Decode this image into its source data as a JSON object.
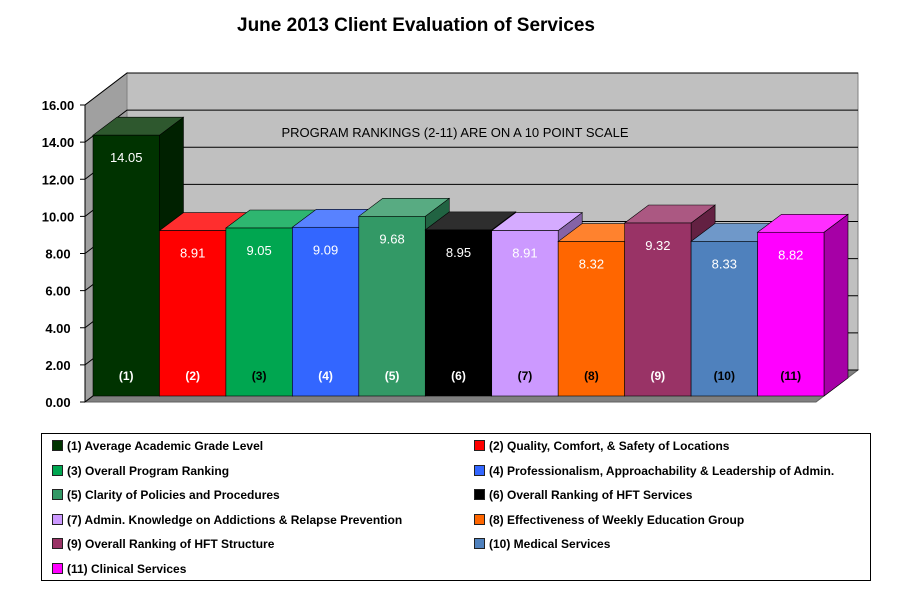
{
  "chart_data": {
    "type": "bar",
    "title": "June 2013 Client Evaluation of Services",
    "annotation": "PROGRAM RANKINGS (2-11) ARE ON A 10 POINT SCALE",
    "ylim": [
      0,
      16
    ],
    "yticks": [
      "0.00",
      "2.00",
      "4.00",
      "6.00",
      "8.00",
      "10.00",
      "12.00",
      "14.00",
      "16.00"
    ],
    "categories": [
      "(1)",
      "(2)",
      "(3)",
      "(4)",
      "(5)",
      "(6)",
      "(7)",
      "(8)",
      "(9)",
      "(10)",
      "(11)"
    ],
    "values": [
      14.05,
      8.91,
      9.05,
      9.09,
      9.68,
      8.95,
      8.91,
      8.32,
      9.32,
      8.33,
      8.82
    ],
    "value_labels": [
      "14.05",
      "8.91",
      "9.05",
      "9.09",
      "9.68",
      "8.95",
      "8.91",
      "8.32",
      "9.32",
      "8.33",
      "8.82"
    ],
    "colors": [
      "#003300",
      "#FF0000",
      "#00A650",
      "#3366FF",
      "#339966",
      "#000000",
      "#CC99FF",
      "#FF6600",
      "#993366",
      "#4F81BD",
      "#FF00FF"
    ],
    "series_names": [
      "(1) Average Academic Grade Level",
      "(2) Quality, Comfort, & Safety of Locations",
      "(3) Overall Program Ranking",
      "(4) Professionalism, Approachability  & Leadership of Admin.",
      "(5) Clarity of Policies and Procedures",
      "(6) Overall Ranking of HFT Services",
      "(7) Admin. Knowledge on Addictions & Relapse Prevention",
      "(8) Effectiveness of Weekly Education Group",
      "(9) Overall Ranking of HFT Structure",
      "(10) Medical Services",
      "(11) Clinical Services"
    ],
    "value_label_colors": [
      "#ffffff",
      "#ffffff",
      "#ffffff",
      "#ffffff",
      "#ffffff",
      "#ffffff",
      "#ffffff",
      "#ffffff",
      "#ffffff",
      "#ffffff",
      "#ffffff"
    ],
    "category_label_colors": [
      "#ffffff",
      "#ffffff",
      "#000000",
      "#ffffff",
      "#ffffff",
      "#ffffff",
      "#000000",
      "#000000",
      "#ffffff",
      "#000000",
      "#000000"
    ],
    "legend_position": "bottom",
    "grid": true
  }
}
